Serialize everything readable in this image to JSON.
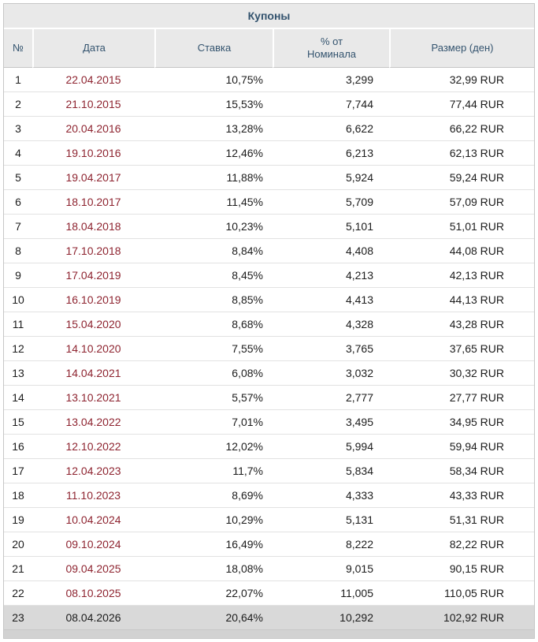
{
  "table": {
    "title": "Купоны",
    "columns": [
      {
        "key": "num",
        "label": "№"
      },
      {
        "key": "date",
        "label": "Дата"
      },
      {
        "key": "rate",
        "label": "Ставка"
      },
      {
        "key": "pct_nominal",
        "label": "% от\nНоминала"
      },
      {
        "key": "size",
        "label": "Размер (ден)"
      }
    ],
    "rows": [
      {
        "num": "1",
        "date": "22.04.2015",
        "rate": "10,75%",
        "pct_nominal": "3,299",
        "size": "32,99 RUR"
      },
      {
        "num": "2",
        "date": "21.10.2015",
        "rate": "15,53%",
        "pct_nominal": "7,744",
        "size": "77,44 RUR"
      },
      {
        "num": "3",
        "date": "20.04.2016",
        "rate": "13,28%",
        "pct_nominal": "6,622",
        "size": "66,22 RUR"
      },
      {
        "num": "4",
        "date": "19.10.2016",
        "rate": "12,46%",
        "pct_nominal": "6,213",
        "size": "62,13 RUR"
      },
      {
        "num": "5",
        "date": "19.04.2017",
        "rate": "11,88%",
        "pct_nominal": "5,924",
        "size": "59,24 RUR"
      },
      {
        "num": "6",
        "date": "18.10.2017",
        "rate": "11,45%",
        "pct_nominal": "5,709",
        "size": "57,09 RUR"
      },
      {
        "num": "7",
        "date": "18.04.2018",
        "rate": "10,23%",
        "pct_nominal": "5,101",
        "size": "51,01 RUR"
      },
      {
        "num": "8",
        "date": "17.10.2018",
        "rate": "8,84%",
        "pct_nominal": "4,408",
        "size": "44,08 RUR"
      },
      {
        "num": "9",
        "date": "17.04.2019",
        "rate": "8,45%",
        "pct_nominal": "4,213",
        "size": "42,13 RUR"
      },
      {
        "num": "10",
        "date": "16.10.2019",
        "rate": "8,85%",
        "pct_nominal": "4,413",
        "size": "44,13 RUR"
      },
      {
        "num": "11",
        "date": "15.04.2020",
        "rate": "8,68%",
        "pct_nominal": "4,328",
        "size": "43,28 RUR"
      },
      {
        "num": "12",
        "date": "14.10.2020",
        "rate": "7,55%",
        "pct_nominal": "3,765",
        "size": "37,65 RUR"
      },
      {
        "num": "13",
        "date": "14.04.2021",
        "rate": "6,08%",
        "pct_nominal": "3,032",
        "size": "30,32 RUR"
      },
      {
        "num": "14",
        "date": "13.10.2021",
        "rate": "5,57%",
        "pct_nominal": "2,777",
        "size": "27,77 RUR"
      },
      {
        "num": "15",
        "date": "13.04.2022",
        "rate": "7,01%",
        "pct_nominal": "3,495",
        "size": "34,95 RUR"
      },
      {
        "num": "16",
        "date": "12.10.2022",
        "rate": "12,02%",
        "pct_nominal": "5,994",
        "size": "59,94 RUR"
      },
      {
        "num": "17",
        "date": "12.04.2023",
        "rate": "11,7%",
        "pct_nominal": "5,834",
        "size": "58,34 RUR"
      },
      {
        "num": "18",
        "date": "11.10.2023",
        "rate": "8,69%",
        "pct_nominal": "4,333",
        "size": "43,33 RUR"
      },
      {
        "num": "19",
        "date": "10.04.2024",
        "rate": "10,29%",
        "pct_nominal": "5,131",
        "size": "51,31 RUR"
      },
      {
        "num": "20",
        "date": "09.10.2024",
        "rate": "16,49%",
        "pct_nominal": "8,222",
        "size": "82,22 RUR"
      },
      {
        "num": "21",
        "date": "09.04.2025",
        "rate": "18,08%",
        "pct_nominal": "9,015",
        "size": "90,15 RUR"
      },
      {
        "num": "22",
        "date": "08.10.2025",
        "rate": "22,07%",
        "pct_nominal": "11,005",
        "size": "110,05 RUR"
      },
      {
        "num": "23",
        "date": "08.04.2026",
        "rate": "20,64%",
        "pct_nominal": "10,292",
        "size": "102,92 RUR",
        "highlighted": true
      }
    ]
  },
  "theme": {
    "title_text": "#33536e",
    "header_text": "#33536e",
    "header_bg": "#e9e9e9",
    "body_text": "#1c1c1c",
    "link": "#8e2430",
    "row_border": "#e2e2e2",
    "outer_border": "#c6c6c6",
    "current_row_bg": "#d9d9d9",
    "footer_bg": "#d2d2d2"
  }
}
